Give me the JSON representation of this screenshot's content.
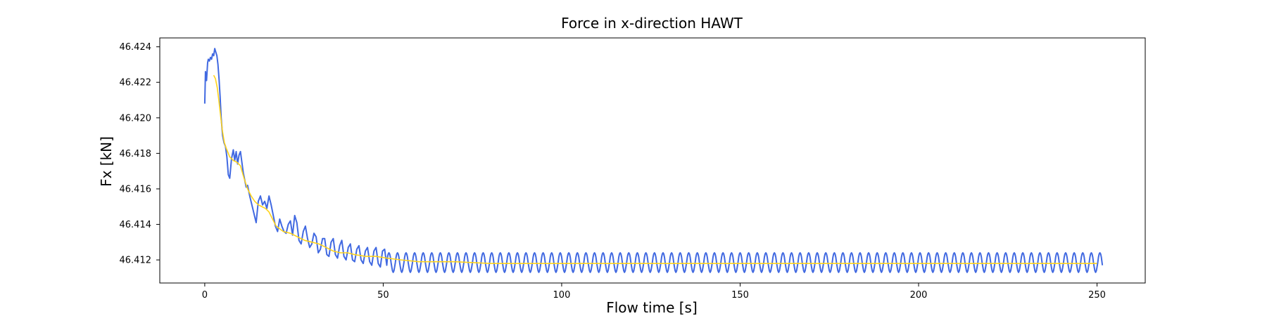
{
  "chart_data": {
    "type": "line",
    "title": "Force in x-direction HAWT",
    "xlabel": "Flow time [s]",
    "ylabel": "Fx [kN]",
    "xlim": [
      -12.6,
      263.5
    ],
    "ylim": [
      46.4107,
      46.4245
    ],
    "xticks": [
      0,
      50,
      100,
      150,
      200,
      250
    ],
    "yticks": [
      46.412,
      46.414,
      46.416,
      46.418,
      46.42,
      46.422,
      46.424
    ],
    "ytick_labels": [
      "46.412",
      "46.414",
      "46.416",
      "46.418",
      "46.420",
      "46.422",
      "46.424"
    ],
    "grid": false,
    "legend": "none",
    "series": [
      {
        "color": "#4169e1",
        "description_x_range": [
          0,
          251.5
        ],
        "raw": {
          "x": [
            0.0,
            0.2,
            0.5,
            0.8,
            1.0,
            1.3,
            1.6,
            1.9,
            2.2,
            2.5,
            2.8,
            3.1,
            3.4,
            3.7,
            4.0,
            4.3,
            4.6,
            5.0,
            5.4,
            5.8,
            6.2,
            6.6,
            7.0,
            7.5,
            8.0,
            8.4,
            8.8,
            9.2,
            9.6,
            10.0,
            10.4,
            10.8,
            11.2,
            11.6,
            12.0,
            12.6,
            13.2,
            13.8,
            14.4,
            15.0,
            15.6,
            16.2,
            16.8,
            17.4,
            18.0,
            18.6,
            19.2,
            19.8,
            20.4,
            21.0,
            21.6,
            22.2,
            22.8,
            23.4,
            24.0,
            24.6,
            25.2,
            25.8,
            26.4,
            27.0,
            27.6,
            28.2,
            28.8,
            29.4,
            30.0,
            30.6,
            31.2,
            31.8,
            32.4,
            33.0,
            33.6,
            34.2,
            34.8,
            35.4,
            36.0,
            36.6,
            37.2,
            37.8,
            38.4,
            39.0,
            39.6,
            40.2,
            40.8,
            41.4,
            42.0,
            42.6,
            43.2,
            43.8,
            44.4,
            45.0,
            45.6,
            46.2,
            46.8,
            47.4,
            48.0,
            48.6,
            49.2,
            49.8,
            50.4,
            51.0
          ],
          "y": [
            46.4208,
            46.4226,
            46.4221,
            46.4231,
            46.4233,
            46.4232,
            46.4234,
            46.4233,
            46.4236,
            46.4235,
            46.4239,
            46.4237,
            46.4235,
            46.423,
            46.4222,
            46.4212,
            46.42,
            46.419,
            46.4186,
            46.4184,
            46.4178,
            46.4168,
            46.4166,
            46.4177,
            46.4182,
            46.4176,
            46.4181,
            46.4174,
            46.4179,
            46.4181,
            46.4175,
            46.4169,
            46.4165,
            46.4161,
            46.4162,
            46.4156,
            46.4151,
            46.4146,
            46.4141,
            46.4153,
            46.4156,
            46.4151,
            46.4153,
            46.4149,
            46.4156,
            46.4151,
            46.4145,
            46.4139,
            46.4136,
            46.4143,
            46.4139,
            46.4136,
            46.4135,
            46.414,
            46.4142,
            46.4134,
            46.4145,
            46.4141,
            46.4131,
            46.4129,
            46.4136,
            46.4139,
            46.4132,
            46.4127,
            46.4129,
            46.4135,
            46.4133,
            46.4124,
            46.4126,
            46.4132,
            46.4132,
            46.4123,
            46.4122,
            46.413,
            46.4132,
            46.4123,
            46.4121,
            46.4128,
            46.4131,
            46.4122,
            46.412,
            46.4127,
            46.4129,
            46.412,
            46.4119,
            46.4126,
            46.4128,
            46.412,
            46.4118,
            46.4125,
            46.4127,
            46.4119,
            46.4117,
            46.4125,
            46.4127,
            46.4118,
            46.4116,
            46.4125,
            46.4126,
            46.4117
          ]
        },
        "steady_oscillation": {
          "x_start": 51.0,
          "x_end": 251.5,
          "period": 2.4,
          "min": 46.4113,
          "max": 46.4124
        },
        "end_point": {
          "x": 251.5,
          "y": 46.4117
        }
      },
      {
        "color": "#ffd31a",
        "x": [
          2.5,
          3.0,
          3.5,
          4.0,
          4.5,
          5.0,
          5.5,
          6.0,
          7.0,
          8.0,
          9.0,
          10.0,
          11.0,
          12.0,
          13.0,
          14.0,
          15.0,
          16.0,
          17.0,
          18.0,
          19.0,
          20.0,
          22.0,
          24.0,
          26.0,
          28.0,
          30.0,
          32.0,
          34.0,
          36.0,
          38.0,
          40.0,
          42.0,
          45.0,
          48.0,
          51.0,
          55.0,
          60.0,
          65.0,
          70.0,
          80.0,
          90.0,
          100.0,
          120.0,
          150.0,
          200.0,
          250.0
        ],
        "y": [
          46.4224,
          46.4222,
          46.4217,
          46.4209,
          46.42,
          46.4192,
          46.4186,
          46.4183,
          46.4178,
          46.4176,
          46.4175,
          46.4173,
          46.4166,
          46.416,
          46.4156,
          46.4153,
          46.4151,
          46.415,
          46.4149,
          46.4147,
          46.4143,
          46.4139,
          46.4136,
          46.4135,
          46.4133,
          46.4131,
          46.413,
          46.4129,
          46.4127,
          46.4125,
          46.4124,
          46.4124,
          46.4123,
          46.4122,
          46.4122,
          46.4121,
          46.412,
          46.4119,
          46.4119,
          46.4119,
          46.4118,
          46.4118,
          46.4118,
          46.4118,
          46.4118,
          46.4118,
          46.4118
        ]
      }
    ]
  }
}
